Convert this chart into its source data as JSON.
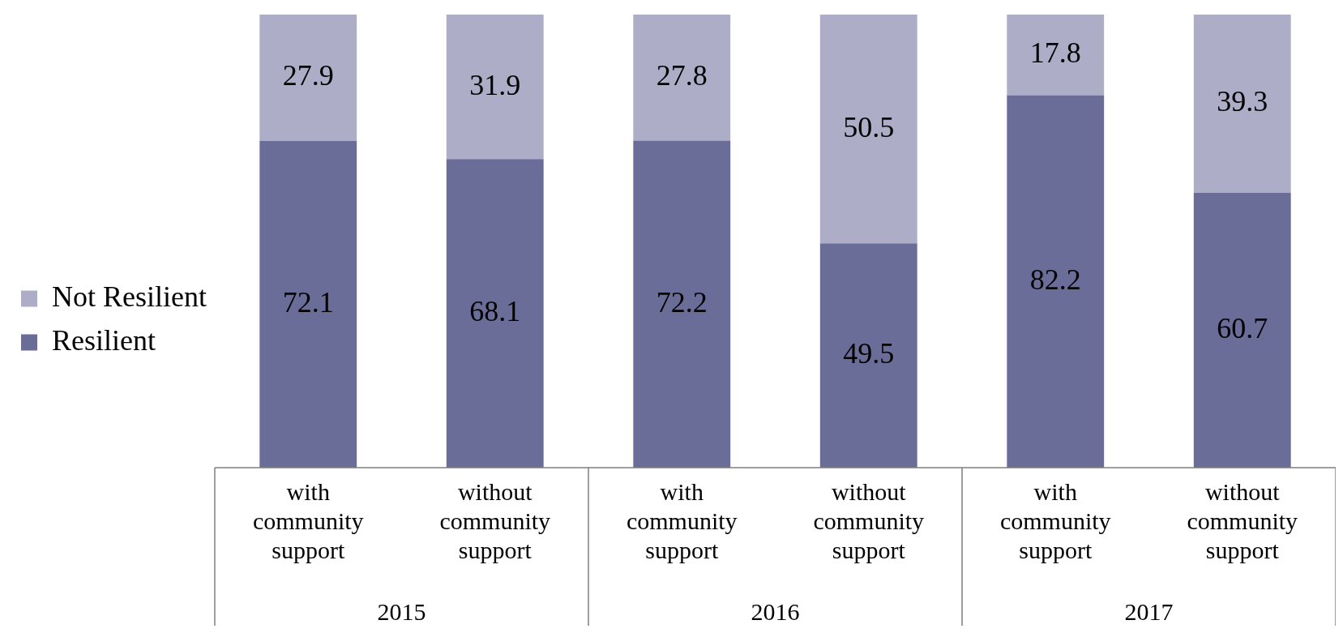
{
  "chart_data": {
    "type": "bar",
    "stacked": true,
    "data_labels": true,
    "legend": "left",
    "grid": false,
    "categories": [
      "with community support",
      "without community support",
      "with community support",
      "without community support",
      "with community support",
      "without community support"
    ],
    "series": [
      {
        "name": "Resilient",
        "color": "#6b6d99",
        "values": [
          72.1,
          68.1,
          72.2,
          49.5,
          82.2,
          60.7
        ]
      },
      {
        "name": "Not Resilient",
        "color": "#adadc8",
        "values": [
          27.9,
          31.9,
          27.8,
          50.5,
          17.8,
          39.3
        ]
      }
    ],
    "annotations": [
      "2015",
      "2016",
      "2017"
    ]
  }
}
